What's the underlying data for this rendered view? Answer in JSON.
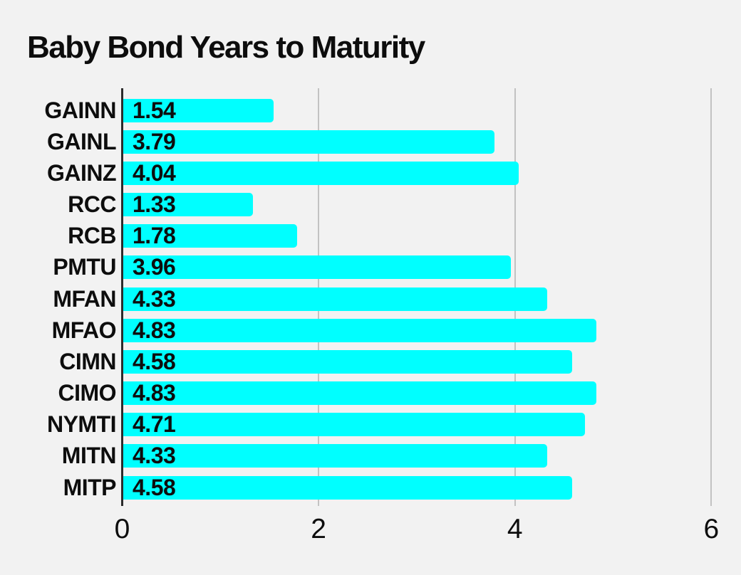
{
  "chart": {
    "title": "Baby Bond Years to Maturity"
  },
  "chart_data": {
    "type": "bar",
    "orientation": "horizontal",
    "title": "Baby Bond Years to Maturity",
    "categories": [
      "GAINN",
      "GAINL",
      "GAINZ",
      "RCC",
      "RCB",
      "PMTU",
      "MFAN",
      "MFAO",
      "CIMN",
      "CIMO",
      "NYMTI",
      "MITN",
      "MITP"
    ],
    "values": [
      1.54,
      3.79,
      4.04,
      1.33,
      1.78,
      3.96,
      4.33,
      4.83,
      4.58,
      4.83,
      4.71,
      4.33,
      4.58
    ],
    "value_labels": [
      "1.54",
      "3.79",
      "4.04",
      "1.33",
      "1.78",
      "3.96",
      "4.33",
      "4.83",
      "4.58",
      "4.83",
      "4.71",
      "4.33",
      "4.58"
    ],
    "xlabel": "",
    "ylabel": "",
    "xlim": [
      0,
      6
    ],
    "xticks": [
      0,
      2,
      4,
      6
    ],
    "xtick_labels": [
      "0",
      "2",
      "4",
      "6"
    ],
    "grid": "vertical",
    "legend": "none",
    "colors": {
      "bar": "#00ffff",
      "value_label_halo": "#00ffff",
      "text": "#0d0d0d",
      "gridline": "#c2c2c2",
      "axis_line": "#2b2b2b",
      "background": "#f2f2f2"
    }
  }
}
